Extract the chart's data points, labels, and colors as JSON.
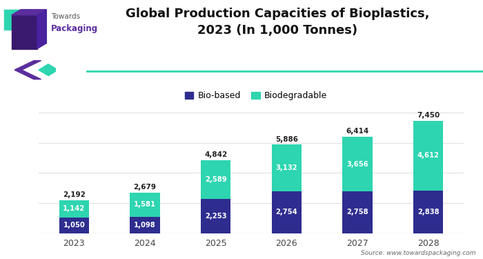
{
  "title": "Global Production Capacities of Bioplastics,\n2023 (In 1,000 Tonnes)",
  "years": [
    "2023",
    "2024",
    "2025",
    "2026",
    "2027",
    "2028"
  ],
  "bio_based": [
    1050,
    1098,
    2253,
    2754,
    2758,
    2838
  ],
  "biodegradable": [
    1142,
    1581,
    2589,
    3132,
    3656,
    4612
  ],
  "totals": [
    2192,
    2679,
    4842,
    5886,
    6414,
    7450
  ],
  "bio_based_color": "#2e2d8f",
  "biodegradable_color": "#2dd5b0",
  "background_color": "#ffffff",
  "title_fontsize": 13,
  "legend_labels": [
    "Bio-based",
    "Biodegradable"
  ],
  "source_text": "Source: www.towardspackaging.com",
  "bar_width": 0.42,
  "ylim": [
    0,
    8600
  ],
  "accent_line_color": "#2dd5b0",
  "accent_diamond_color": "#5b2d9e",
  "logo_teal_color": "#2dd5b0",
  "logo_purple_color": "#5b2d9e",
  "logo_darkpurple_color": "#3a1a6e"
}
